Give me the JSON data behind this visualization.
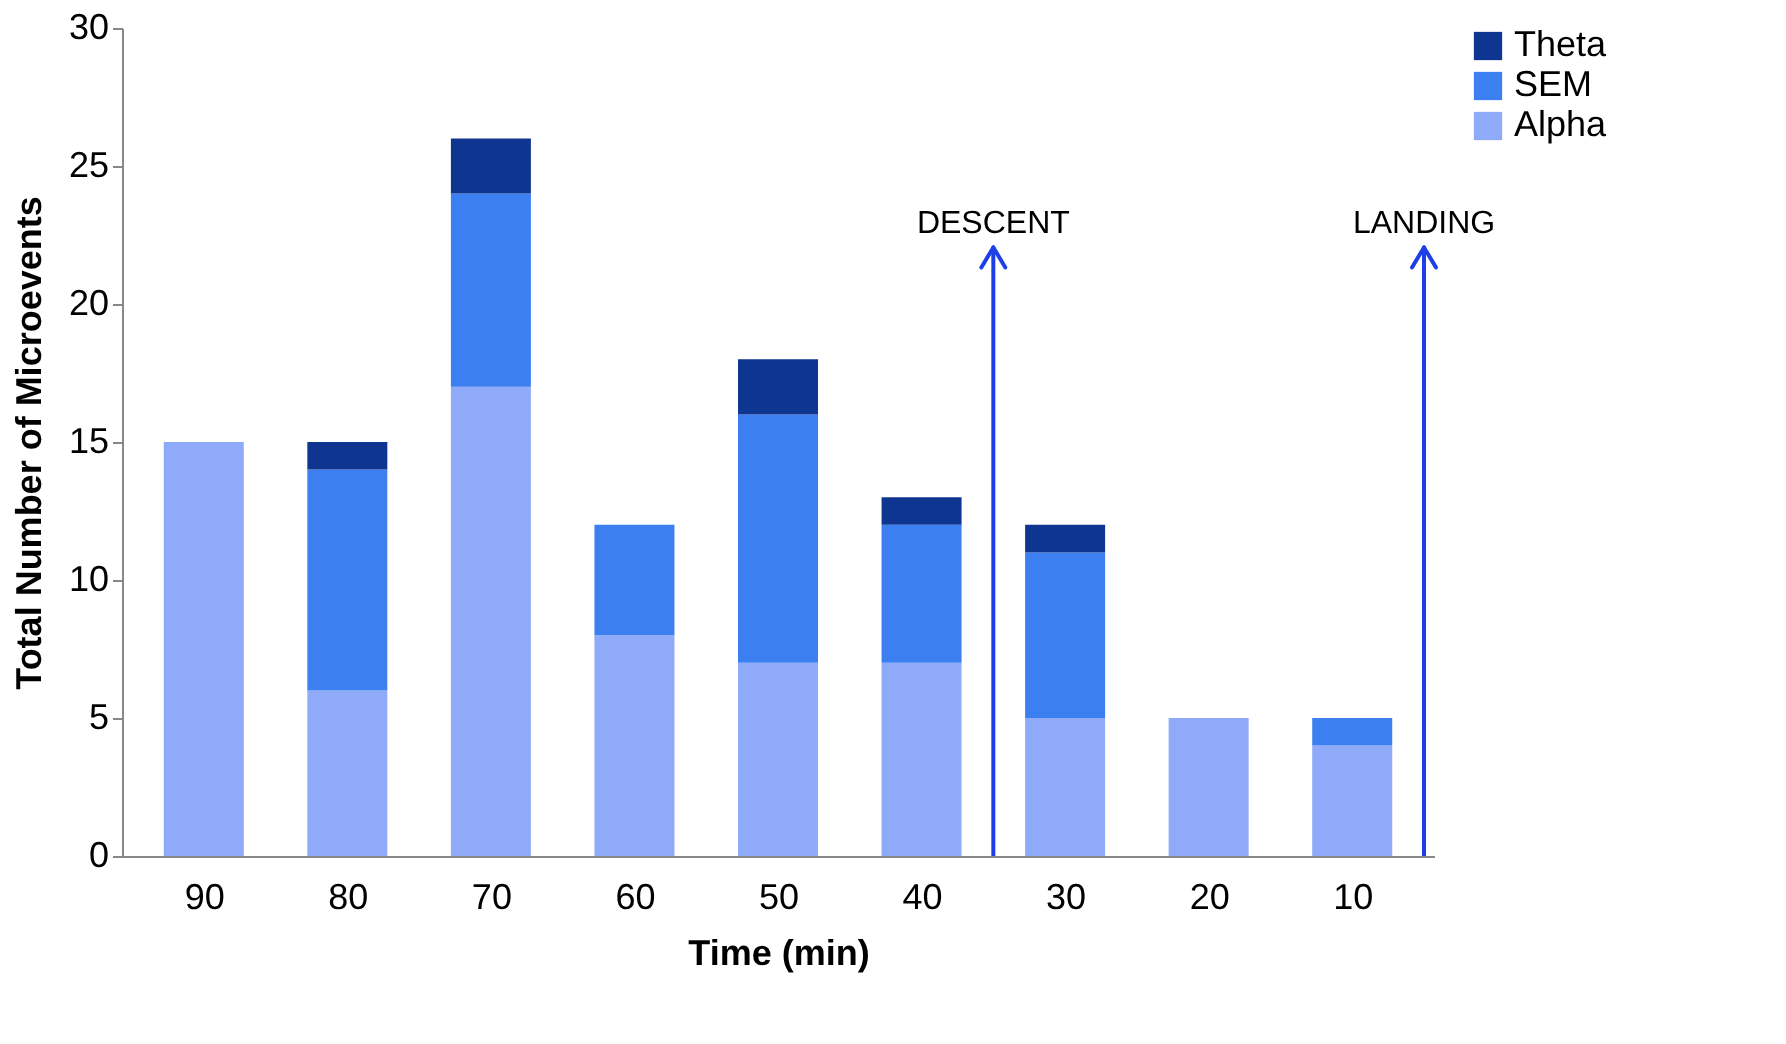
{
  "chart_data": {
    "type": "bar",
    "stacked": true,
    "xlabel": "Time (min)",
    "ylabel": "Total Number of Microevents",
    "x": [
      90,
      80,
      70,
      60,
      50,
      40,
      30,
      20,
      10
    ],
    "xlim": [
      95,
      5
    ],
    "xticks": [
      90,
      80,
      70,
      60,
      50,
      40,
      30,
      20,
      10
    ],
    "ylim": [
      0,
      30
    ],
    "yticks": [
      0,
      5,
      10,
      15,
      20,
      25,
      30
    ],
    "grid": false,
    "legend": "right",
    "series": [
      {
        "name": "Alpha",
        "color": "#8eaaf9",
        "values": [
          15,
          6,
          17,
          8,
          7,
          7,
          5,
          5,
          4
        ]
      },
      {
        "name": "SEM",
        "color": "#3b7ff0",
        "values": [
          null,
          8,
          7,
          4,
          9,
          5,
          6,
          null,
          1
        ]
      },
      {
        "name": "Theta",
        "color": "#0e3590",
        "values": [
          null,
          1,
          2,
          null,
          2,
          1,
          1,
          null,
          null
        ]
      }
    ],
    "ref_lines": [
      {
        "axis": "x",
        "value": 35,
        "label": "DESCENT",
        "color": "#1f3fe6"
      },
      {
        "axis": "x",
        "value": 5,
        "label": "LANDING",
        "color": "#1f3fe6"
      }
    ]
  }
}
